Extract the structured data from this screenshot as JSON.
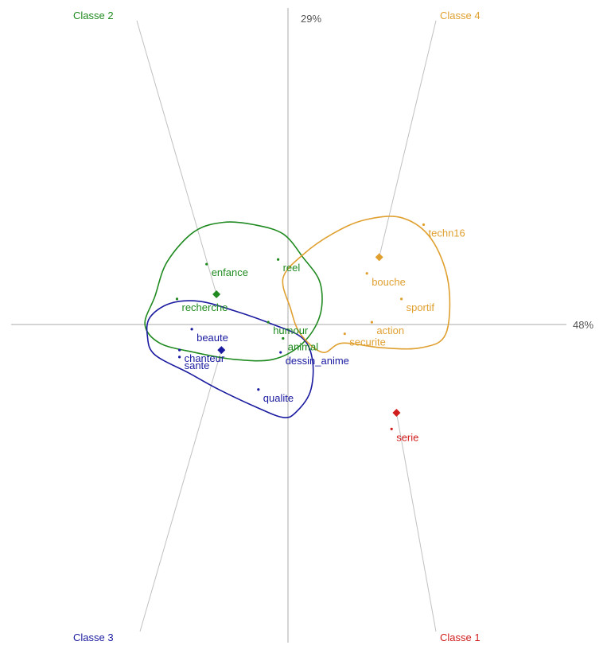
{
  "chart_data": {
    "type": "scatter",
    "axes": {
      "x_inertia_label": "48%",
      "y_inertia_label": "29%",
      "xlim": [
        -1.0,
        1.0
      ],
      "ylim": [
        -1.0,
        1.0
      ],
      "grid": false,
      "legend": "none"
    },
    "classes": [
      {
        "name": "Classe 1",
        "color": "#d01c1c",
        "centroid": [
          0.44,
          -0.38
        ],
        "label_corner": "bottom-right",
        "hull": []
      },
      {
        "name": "Classe 2",
        "color": "#1f8a1f",
        "centroid": [
          -0.29,
          0.13
        ],
        "label_corner": "top-left",
        "hull": [
          [
            -0.58,
            0.0
          ],
          [
            -0.54,
            0.12
          ],
          [
            -0.49,
            0.27
          ],
          [
            -0.38,
            0.4
          ],
          [
            -0.26,
            0.44
          ],
          [
            -0.14,
            0.43
          ],
          [
            -0.02,
            0.39
          ],
          [
            0.06,
            0.29
          ],
          [
            0.13,
            0.18
          ],
          [
            0.13,
            0.04
          ],
          [
            0.06,
            -0.08
          ],
          [
            -0.06,
            -0.15
          ],
          [
            -0.22,
            -0.15
          ],
          [
            -0.38,
            -0.12
          ],
          [
            -0.52,
            -0.08
          ]
        ]
      },
      {
        "name": "Classe 3",
        "color": "#1a1aa0",
        "centroid": [
          -0.27,
          -0.11
        ],
        "label_corner": "bottom-left",
        "hull": [
          [
            -0.56,
            0.03
          ],
          [
            -0.48,
            0.09
          ],
          [
            -0.36,
            0.1
          ],
          [
            -0.22,
            0.06
          ],
          [
            -0.06,
            0.0
          ],
          [
            0.06,
            -0.06
          ],
          [
            0.1,
            -0.16
          ],
          [
            0.09,
            -0.29
          ],
          [
            0.03,
            -0.38
          ],
          [
            -0.02,
            -0.4
          ],
          [
            -0.12,
            -0.36
          ],
          [
            -0.28,
            -0.28
          ],
          [
            -0.4,
            -0.21
          ],
          [
            -0.54,
            -0.13
          ],
          [
            -0.57,
            -0.05
          ]
        ]
      },
      {
        "name": "Classe 4",
        "color": "#e0a030",
        "centroid": [
          0.37,
          0.29
        ],
        "label_corner": "top-right",
        "hull": [
          [
            -0.02,
            0.2
          ],
          [
            0.06,
            0.3
          ],
          [
            0.18,
            0.39
          ],
          [
            0.31,
            0.45
          ],
          [
            0.46,
            0.46
          ],
          [
            0.58,
            0.37
          ],
          [
            0.65,
            0.18
          ],
          [
            0.64,
            -0.04
          ],
          [
            0.54,
            -0.1
          ],
          [
            0.38,
            -0.1
          ],
          [
            0.22,
            -0.08
          ],
          [
            0.14,
            -0.12
          ],
          [
            0.05,
            -0.04
          ],
          [
            0.01,
            0.07
          ]
        ]
      }
    ],
    "points": [
      {
        "label": "serie",
        "class": "Classe 1",
        "x": 0.42,
        "y": -0.45
      },
      {
        "label": "enfance",
        "class": "Classe 2",
        "x": -0.33,
        "y": 0.26
      },
      {
        "label": "reel",
        "class": "Classe 2",
        "x": -0.04,
        "y": 0.28
      },
      {
        "label": "recherche",
        "class": "Classe 2",
        "x": -0.45,
        "y": 0.11
      },
      {
        "label": "humour",
        "class": "Classe 2",
        "x": -0.08,
        "y": 0.01
      },
      {
        "label": "animal",
        "class": "Classe 2",
        "x": -0.02,
        "y": -0.06
      },
      {
        "label": "beaute",
        "class": "Classe 3",
        "x": -0.39,
        "y": -0.02
      },
      {
        "label": "chanteur",
        "class": "Classe 3",
        "x": -0.44,
        "y": -0.11
      },
      {
        "label": "sante",
        "class": "Classe 3",
        "x": -0.44,
        "y": -0.14
      },
      {
        "label": "dessin_anime",
        "class": "Classe 3",
        "x": -0.03,
        "y": -0.12
      },
      {
        "label": "qualite",
        "class": "Classe 3",
        "x": -0.12,
        "y": -0.28
      },
      {
        "label": "techn16",
        "class": "Classe 4",
        "x": 0.55,
        "y": 0.43
      },
      {
        "label": "bouche",
        "class": "Classe 4",
        "x": 0.32,
        "y": 0.22
      },
      {
        "label": "sportif",
        "class": "Classe 4",
        "x": 0.46,
        "y": 0.11
      },
      {
        "label": "action",
        "class": "Classe 4",
        "x": 0.34,
        "y": 0.01
      },
      {
        "label": "securite",
        "class": "Classe 4",
        "x": 0.23,
        "y": -0.04
      }
    ]
  }
}
